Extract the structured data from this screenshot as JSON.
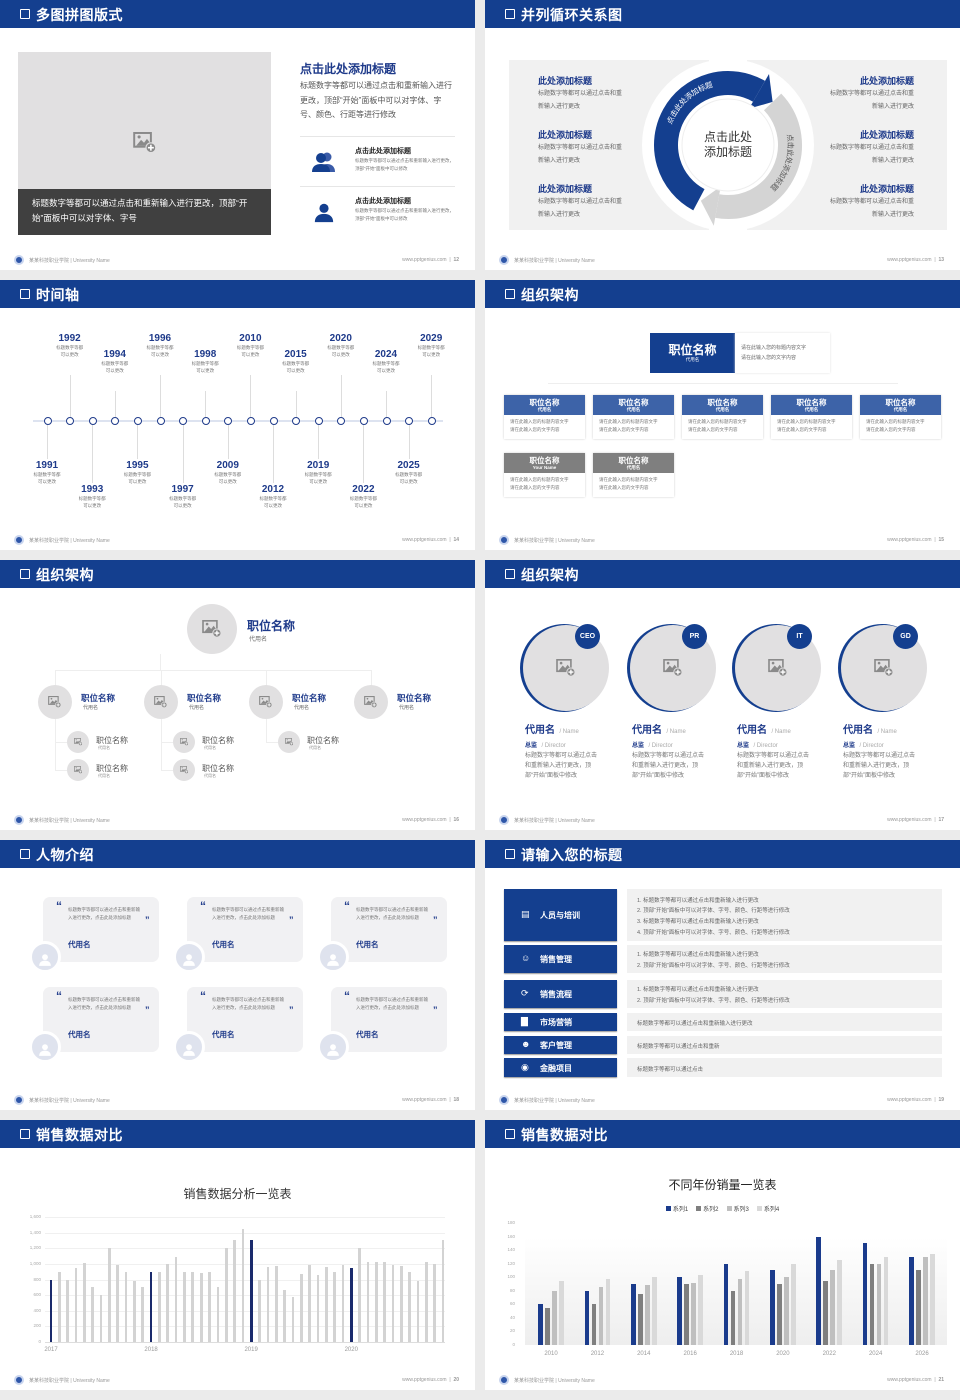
{
  "footer": {
    "school": "某某科技职业学院 | University Name",
    "site": "www.pptgenius.com"
  },
  "colors": {
    "brand_blue": "#143f8f",
    "navy_text": "#1e3a8a",
    "panel_gray": "#f1f1f1",
    "placeholder_gray": "#e1e0e1"
  },
  "s12": {
    "title": "多图拼图版式",
    "page": "12",
    "caption": "标题数字等都可以通过点击和重新输入进行更改，顶部“开始”面板中可以对字体、字号",
    "heading": "点击此处添加标题",
    "paragraph": "标题数字等都可以通过点击和重新输入进行更改，顶部“开始”面板中可以对字体、字号、颜色、行距等进行修改",
    "items": [
      {
        "icon": "users-icon",
        "title": "点击此处添加标题",
        "desc": "标题数字等都可以通过点击和重新输入进行更改，顶部“开始”面板中可以修改"
      },
      {
        "icon": "user-icon",
        "title": "点击此处添加标题",
        "desc": "标题数字等都可以通过点击和重新输入进行更改，顶部“开始”面板中可以修改"
      }
    ]
  },
  "s13": {
    "title": "并列循环关系图",
    "page": "13",
    "center_lines": [
      "点击此处",
      "添加标题"
    ],
    "arc_left": "点击此处添加标题",
    "arc_right": "点击此处添加标题",
    "left_items": [
      {
        "title": "此处添加标题",
        "lines": [
          "标题数字等都可以通过点击和重",
          "新输入进行更改"
        ]
      },
      {
        "title": "此处添加标题",
        "lines": [
          "标题数字等都可以通过点击和重",
          "新输入进行更改"
        ]
      },
      {
        "title": "此处添加标题",
        "lines": [
          "标题数字等都可以通过点击和重",
          "新输入进行更改"
        ]
      }
    ],
    "right_items": [
      {
        "title": "此处添加标题",
        "lines": [
          "标题数字等都可以通过点击和重",
          "新输入进行更改"
        ]
      },
      {
        "title": "此处添加标题",
        "lines": [
          "标题数字等都可以通过点击和重",
          "新输入进行更改"
        ]
      },
      {
        "title": "此处添加标题",
        "lines": [
          "标题数字等都可以通过点击和重",
          "新输入进行更改"
        ]
      }
    ]
  },
  "s14": {
    "title": "时间轴",
    "page": "14",
    "events": [
      {
        "year": "1991",
        "side": "bottom",
        "lines": [
          "标题数字等都",
          "可以更改"
        ]
      },
      {
        "year": "1992",
        "side": "top",
        "lines": [
          "标题数字等都",
          "可以更改"
        ]
      },
      {
        "year": "1993",
        "side": "bottom",
        "lines": [
          "标题数字等都",
          "可以更改"
        ]
      },
      {
        "year": "1994",
        "side": "top",
        "lines": [
          "标题数字等都",
          "可以更改"
        ]
      },
      {
        "year": "1995",
        "side": "bottom",
        "lines": [
          "标题数字等都",
          "可以更改"
        ]
      },
      {
        "year": "1996",
        "side": "top",
        "lines": [
          "标题数字等都",
          "可以更改"
        ]
      },
      {
        "year": "1997",
        "side": "bottom",
        "lines": [
          "标题数字等都",
          "可以更改"
        ]
      },
      {
        "year": "1998",
        "side": "top",
        "lines": [
          "标题数字等都",
          "可以更改"
        ]
      },
      {
        "year": "2009",
        "side": "bottom",
        "lines": [
          "标题数字等都",
          "可以更改"
        ]
      },
      {
        "year": "2010",
        "side": "top",
        "lines": [
          "标题数字等都",
          "可以更改"
        ]
      },
      {
        "year": "2012",
        "side": "bottom",
        "lines": [
          "标题数字等都",
          "可以更改"
        ]
      },
      {
        "year": "2015",
        "side": "top",
        "lines": [
          "标题数字等都",
          "可以更改"
        ]
      },
      {
        "year": "2019",
        "side": "bottom",
        "lines": [
          "标题数字等都",
          "可以更改"
        ]
      },
      {
        "year": "2020",
        "side": "top",
        "lines": [
          "标题数字等都",
          "可以更改"
        ]
      },
      {
        "year": "2022",
        "side": "bottom",
        "lines": [
          "标题数字等都",
          "可以更改"
        ]
      },
      {
        "year": "2024",
        "side": "top",
        "lines": [
          "标题数字等都",
          "可以更改"
        ]
      },
      {
        "year": "2025",
        "side": "bottom",
        "lines": [
          "标题数字等都",
          "可以更改"
        ]
      },
      {
        "year": "2029",
        "side": "top",
        "lines": [
          "标题数字等都",
          "可以更改"
        ]
      }
    ]
  },
  "s15": {
    "title": "组织架构",
    "page": "15",
    "top": {
      "title": "职位名称",
      "sub": "代用名",
      "lines": [
        "请在此输入您的标题内容文字",
        "请在此输入您的文字内容"
      ]
    },
    "cards": [
      {
        "title": "职位名称",
        "sub": "代用名",
        "tone": "blue",
        "lines": [
          "请在此输入您的标题内容文字",
          "请在此输入您的文字内容"
        ]
      },
      {
        "title": "职位名称",
        "sub": "代用名",
        "tone": "blue",
        "lines": [
          "请在此输入您的标题内容文字",
          "请在此输入您的文字内容"
        ]
      },
      {
        "title": "职位名称",
        "sub": "代用名",
        "tone": "blue",
        "lines": [
          "请在此输入您的标题内容文字",
          "请在此输入您的文字内容"
        ]
      },
      {
        "title": "职位名称",
        "sub": "代用名",
        "tone": "blue",
        "lines": [
          "请在此输入您的标题内容文字",
          "请在此输入您的文字内容"
        ]
      },
      {
        "title": "职位名称",
        "sub": "代用名",
        "tone": "blue",
        "lines": [
          "请在此输入您的标题内容文字",
          "请在此输入您的文字内容"
        ]
      },
      {
        "title": "职位名称",
        "sub": "Your Name",
        "tone": "gray",
        "lines": [
          "请在此输入您的标题内容文字",
          "请在此输入您的文字内容"
        ]
      },
      {
        "title": "职位名称",
        "sub": "代用名",
        "tone": "gray",
        "lines": [
          "请在此输入您的标题内容文字",
          "请在此输入您的文字内容"
        ]
      }
    ]
  },
  "s16": {
    "title": "组织架构",
    "page": "16",
    "top": {
      "title": "职位名称",
      "sub": "代用名"
    },
    "level2": [
      {
        "title": "职位名称",
        "sub": "代用名",
        "children": [
          {
            "title": "职位名称",
            "sub": "代用名"
          },
          {
            "title": "职位名称",
            "sub": "代用名"
          }
        ]
      },
      {
        "title": "职位名称",
        "sub": "代用名",
        "children": [
          {
            "title": "职位名称",
            "sub": "代用名"
          },
          {
            "title": "职位名称",
            "sub": "代用名"
          }
        ]
      },
      {
        "title": "职位名称",
        "sub": "代用名",
        "children": [
          {
            "title": "职位名称",
            "sub": "代用名"
          }
        ]
      },
      {
        "title": "职位名称",
        "sub": "代用名",
        "children": []
      }
    ]
  },
  "s17": {
    "title": "组织架构",
    "page": "17",
    "people": [
      {
        "badge": "CEO",
        "name": "代用名",
        "name_en": "/ Name",
        "role": "总监",
        "role_en": "/ Director",
        "desc": "标题数字等都可以通过点击和重新输入进行更改，顶部“开始”面板中修改"
      },
      {
        "badge": "PR",
        "name": "代用名",
        "name_en": "/ Name",
        "role": "总监",
        "role_en": "/ Director",
        "desc": "标题数字等都可以通过点击和重新输入进行更改，顶部“开始”面板中修改"
      },
      {
        "badge": "IT",
        "name": "代用名",
        "name_en": "/ Name",
        "role": "总监",
        "role_en": "/ Director",
        "desc": "标题数字等都可以通过点击和重新输入进行更改，顶部“开始”面板中修改"
      },
      {
        "badge": "GD",
        "name": "代用名",
        "name_en": "/ Name",
        "role": "总监",
        "role_en": "/ Director",
        "desc": "标题数字等都可以通过点击和重新输入进行更改，顶部“开始”面板中修改"
      }
    ]
  },
  "s18": {
    "title": "人物介绍",
    "page": "18",
    "quotes": [
      {
        "text": "标题数字等都可以通过点击和重新输入进行更改，点击此处添加标题",
        "name": "代用名"
      },
      {
        "text": "标题数字等都可以通过点击和重新输入进行更改，点击此处添加标题",
        "name": "代用名"
      },
      {
        "text": "标题数字等都可以通过点击和重新输入进行更改，点击此处添加标题",
        "name": "代用名"
      },
      {
        "text": "标题数字等都可以通过点击和重新输入进行更改，点击此处添加标题",
        "name": "代用名"
      },
      {
        "text": "标题数字等都可以通过点击和重新输入进行更改，点击此处添加标题",
        "name": "代用名"
      },
      {
        "text": "标题数字等都可以通过点击和重新输入进行更改，点击此处添加标题",
        "name": "代用名"
      }
    ]
  },
  "s19": {
    "title": "请输入您的标题",
    "page": "19",
    "rows": [
      {
        "icon": "training-icon",
        "label": "人员与培训",
        "lines": [
          "1.   标题数字等都可以通过点击和重新输入进行更改",
          "2.   顶部“开始”面板中可以对字体、字号、颜色、行距等进行修改",
          "3.   标题数字等都可以通过点击和重新输入进行更改",
          "4.   顶部“开始”面板中可以对字体、字号、颜色、行距等进行修改"
        ]
      },
      {
        "icon": "sales-manager-icon",
        "label": "销售管理",
        "lines": [
          "1.   标题数字等都可以通过点击和重新输入进行更改",
          "2.   顶部“开始”面板中可以对字体、字号、颜色、行距等进行修改"
        ]
      },
      {
        "icon": "cycle-icon",
        "label": "销售流程",
        "lines": [
          "1.   标题数字等都可以通过点击和重新输入进行更改",
          "2.   顶部“开始”面板中可以对字体、字号、颜色、行距等进行修改"
        ]
      },
      {
        "icon": "bar-chart-icon",
        "label": "市场营销",
        "lines": [
          "标题数字等都可以通过点击和重新输入进行更改"
        ]
      },
      {
        "icon": "customers-icon",
        "label": "客户管理",
        "lines": [
          "标题数字等都可以通过点击和重新"
        ]
      },
      {
        "icon": "finance-icon",
        "label": "金融项目",
        "lines": [
          "标题数字等都可以通过点击"
        ]
      }
    ]
  },
  "s20": {
    "title": "销售数据对比",
    "page": "20"
  },
  "s21": {
    "title": "销售数据对比",
    "page": "21"
  },
  "chart_data": [
    {
      "type": "bar",
      "title": "销售数据分析一览表",
      "ylim": [
        0,
        1600
      ],
      "yticks": [
        0,
        200,
        400,
        600,
        800,
        1000,
        1200,
        1400,
        1600
      ],
      "ytick_labels": [
        "0",
        "200",
        "400",
        "600",
        "800",
        "1,000",
        "1,200",
        "1,400",
        "1,600"
      ],
      "x_labels": [
        "2017",
        "2018",
        "2019",
        "2020"
      ],
      "bars_per_label": 12,
      "highlight_color": "#1a2a6c",
      "bar_color": "#d3d3d3",
      "highlighted_indices": [
        0,
        12,
        24,
        36
      ],
      "values": [
        800,
        900,
        800,
        950,
        1010,
        700,
        600,
        1200,
        980,
        890,
        780,
        700,
        890,
        890,
        1000,
        1090,
        900,
        900,
        880,
        900,
        700,
        1200,
        1300,
        1450,
        1300,
        800,
        960,
        970,
        660,
        580,
        870,
        980,
        860,
        960,
        890,
        980,
        950,
        1200,
        1020,
        1030,
        1020,
        980,
        970,
        890,
        780,
        1020,
        1000,
        1300
      ],
      "grid": true
    },
    {
      "type": "bar",
      "title": "不同年份销量一览表",
      "categories": [
        "2010",
        "2012",
        "2014",
        "2016",
        "2018",
        "2020",
        "2022",
        "2024",
        "2026"
      ],
      "ylim": [
        0,
        180
      ],
      "yticks": [
        0,
        20,
        40,
        60,
        80,
        100,
        120,
        140,
        160,
        180
      ],
      "legend": "top",
      "grid": true,
      "series": [
        {
          "name": "系列1",
          "color": "#1a3b8c",
          "values": [
            60,
            80,
            90,
            100,
            120,
            110,
            160,
            150,
            130
          ]
        },
        {
          "name": "系列2",
          "color": "#7f7f7f",
          "values": [
            55,
            60,
            75,
            90,
            80,
            90,
            95,
            120,
            110
          ]
        },
        {
          "name": "系列3",
          "color": "#bfbfbf",
          "values": [
            80,
            85,
            88,
            91,
            97,
            100,
            110,
            120,
            130
          ]
        },
        {
          "name": "系列4",
          "color": "#d9d9d9",
          "values": [
            95,
            98,
            101,
            104,
            109,
            120,
            126,
            130,
            134
          ]
        }
      ]
    }
  ]
}
